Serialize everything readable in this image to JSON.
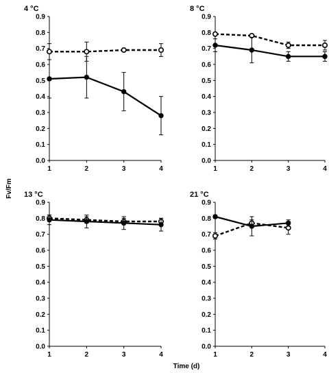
{
  "chart_data": [
    {
      "type": "line",
      "title": "4 °C",
      "x": [
        1,
        2,
        3,
        4
      ],
      "xlim": [
        1,
        4
      ],
      "ylim": [
        0,
        0.9
      ],
      "yticks": [
        "0.0",
        "0.1",
        "0.2",
        "0.3",
        "0.4",
        "0.5",
        "0.6",
        "0.7",
        "0.8",
        "0.9"
      ],
      "xticks": [
        "1",
        "2",
        "3",
        "4"
      ],
      "grid": false,
      "series": [
        {
          "style": "solid",
          "marker": "filled-circle",
          "values": [
            0.51,
            0.52,
            0.43,
            0.28
          ],
          "errors": [
            0.12,
            0.13,
            0.12,
            0.12
          ]
        },
        {
          "style": "dashed",
          "marker": "open-circle",
          "values": [
            0.68,
            0.68,
            0.69,
            0.69
          ],
          "errors": [
            0.05,
            0.06,
            0.0,
            0.04
          ]
        }
      ]
    },
    {
      "type": "line",
      "title": "8 °C",
      "x": [
        1,
        2,
        3,
        4
      ],
      "xlim": [
        1,
        4
      ],
      "ylim": [
        0,
        0.9
      ],
      "yticks": [
        "0.0",
        "0.1",
        "0.2",
        "0.3",
        "0.4",
        "0.5",
        "0.6",
        "0.7",
        "0.8",
        "0.9"
      ],
      "xticks": [
        "1",
        "2",
        "3",
        "4"
      ],
      "grid": false,
      "series": [
        {
          "style": "solid",
          "marker": "filled-circle",
          "values": [
            0.72,
            0.69,
            0.65,
            0.65
          ],
          "errors": [
            0.04,
            0.08,
            0.03,
            0.03
          ]
        },
        {
          "style": "dashed",
          "marker": "open-circle",
          "values": [
            0.79,
            0.78,
            0.72,
            0.72
          ],
          "errors": [
            0.01,
            0.01,
            0.02,
            0.03
          ]
        }
      ]
    },
    {
      "type": "line",
      "title": "13 °C",
      "x": [
        1,
        2,
        3,
        4
      ],
      "xlim": [
        1,
        4
      ],
      "ylim": [
        0,
        0.9
      ],
      "yticks": [
        "0.0",
        "0.1",
        "0.2",
        "0.3",
        "0.4",
        "0.5",
        "0.6",
        "0.7",
        "0.8",
        "0.9"
      ],
      "xticks": [
        "1",
        "2",
        "3",
        "4"
      ],
      "grid": false,
      "series": [
        {
          "style": "solid",
          "marker": "filled-circle",
          "values": [
            0.79,
            0.78,
            0.77,
            0.76
          ],
          "errors": [
            0.03,
            0.04,
            0.04,
            0.04
          ]
        },
        {
          "style": "dashed",
          "marker": "open-circle",
          "values": [
            0.8,
            0.79,
            0.78,
            0.78
          ],
          "errors": [
            0.02,
            0.02,
            0.02,
            0.02
          ]
        }
      ]
    },
    {
      "type": "line",
      "title": "21 °C",
      "x": [
        1,
        2,
        3,
        4
      ],
      "xlim": [
        1,
        4
      ],
      "ylim": [
        0,
        0.9
      ],
      "yticks": [
        "0.0",
        "0.1",
        "0.2",
        "0.3",
        "0.4",
        "0.5",
        "0.6",
        "0.7",
        "0.8",
        "0.9"
      ],
      "xticks": [
        "1",
        "2",
        "3",
        "4"
      ],
      "grid": false,
      "series": [
        {
          "style": "solid",
          "marker": "filled-circle",
          "values": [
            0.81,
            0.75,
            0.77,
            null
          ],
          "errors": [
            0.01,
            0.06,
            0.02,
            null
          ]
        },
        {
          "style": "dashed",
          "marker": "open-circle",
          "values": [
            0.69,
            0.77,
            0.74,
            null
          ],
          "errors": [
            0.02,
            0.02,
            0.04,
            null
          ]
        }
      ]
    }
  ],
  "ylabel": "Fv/Fm",
  "xlabel": "Time (d)",
  "colors": {
    "line": "#000000",
    "background": "#ffffff"
  }
}
